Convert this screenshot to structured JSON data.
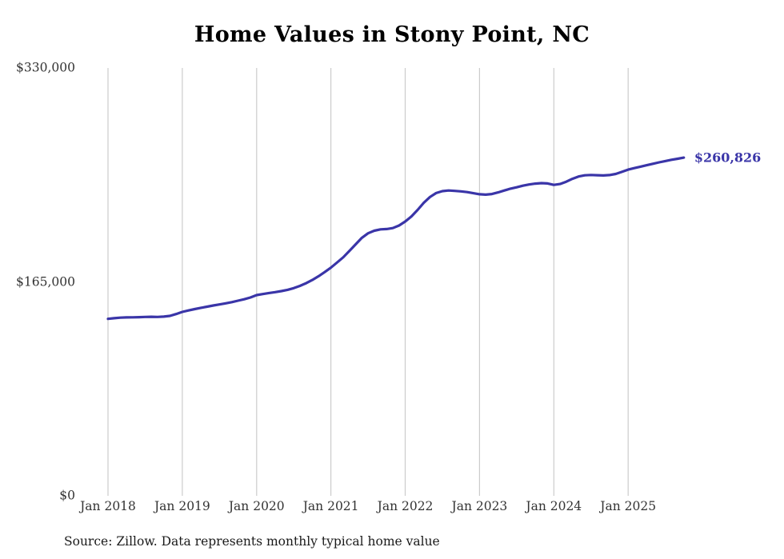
{
  "chart_data": {
    "type": "line",
    "title": "Home Values in Stony Point, NC",
    "series_name": "Monthly typical home value",
    "unit": "USD",
    "x_start": "Jan 2018",
    "x_end": "Oct 2025",
    "x_frequency": "monthly",
    "x_tick_labels": [
      "Jan 2018",
      "Jan 2019",
      "Jan 2020",
      "Jan 2021",
      "Jan 2022",
      "Jan 2023",
      "Jan 2024",
      "Jan 2025"
    ],
    "y_ticks": [
      {
        "value": 0,
        "label": "$0"
      },
      {
        "value": 165000,
        "label": "$165,000"
      },
      {
        "value": 330000,
        "label": "$330,000"
      }
    ],
    "ylim": [
      0,
      330000
    ],
    "grid": "vertical-only",
    "legend": "none",
    "line_color": "#3a35a8",
    "gridline_color": "#cccccc",
    "latest_label": "$260,826",
    "latest_value": 260826,
    "values": [
      136500,
      137000,
      137400,
      137600,
      137700,
      137800,
      138000,
      138100,
      138000,
      138200,
      138800,
      140200,
      141900,
      143000,
      144000,
      145000,
      145900,
      146800,
      147600,
      148500,
      149400,
      150500,
      151600,
      153000,
      154800,
      155600,
      156400,
      157100,
      157900,
      158900,
      160200,
      161900,
      164000,
      166500,
      169400,
      172600,
      176000,
      180000,
      184000,
      189000,
      194000,
      199000,
      202500,
      204500,
      205500,
      205800,
      206500,
      208500,
      211600,
      215500,
      220500,
      226000,
      230500,
      233500,
      235000,
      235500,
      235200,
      234800,
      234300,
      233400,
      232600,
      232300,
      232800,
      234000,
      235500,
      236900,
      238000,
      239200,
      240100,
      240800,
      241200,
      240900,
      239800,
      240500,
      242300,
      244500,
      246300,
      247200,
      247500,
      247300,
      247100,
      247400,
      248300,
      249900,
      251600,
      252800,
      253900,
      255000,
      256100,
      257200,
      258200,
      259200,
      260000,
      260826
    ]
  },
  "footer": {
    "source": "Source: Zillow. Data represents monthly typical home value"
  }
}
